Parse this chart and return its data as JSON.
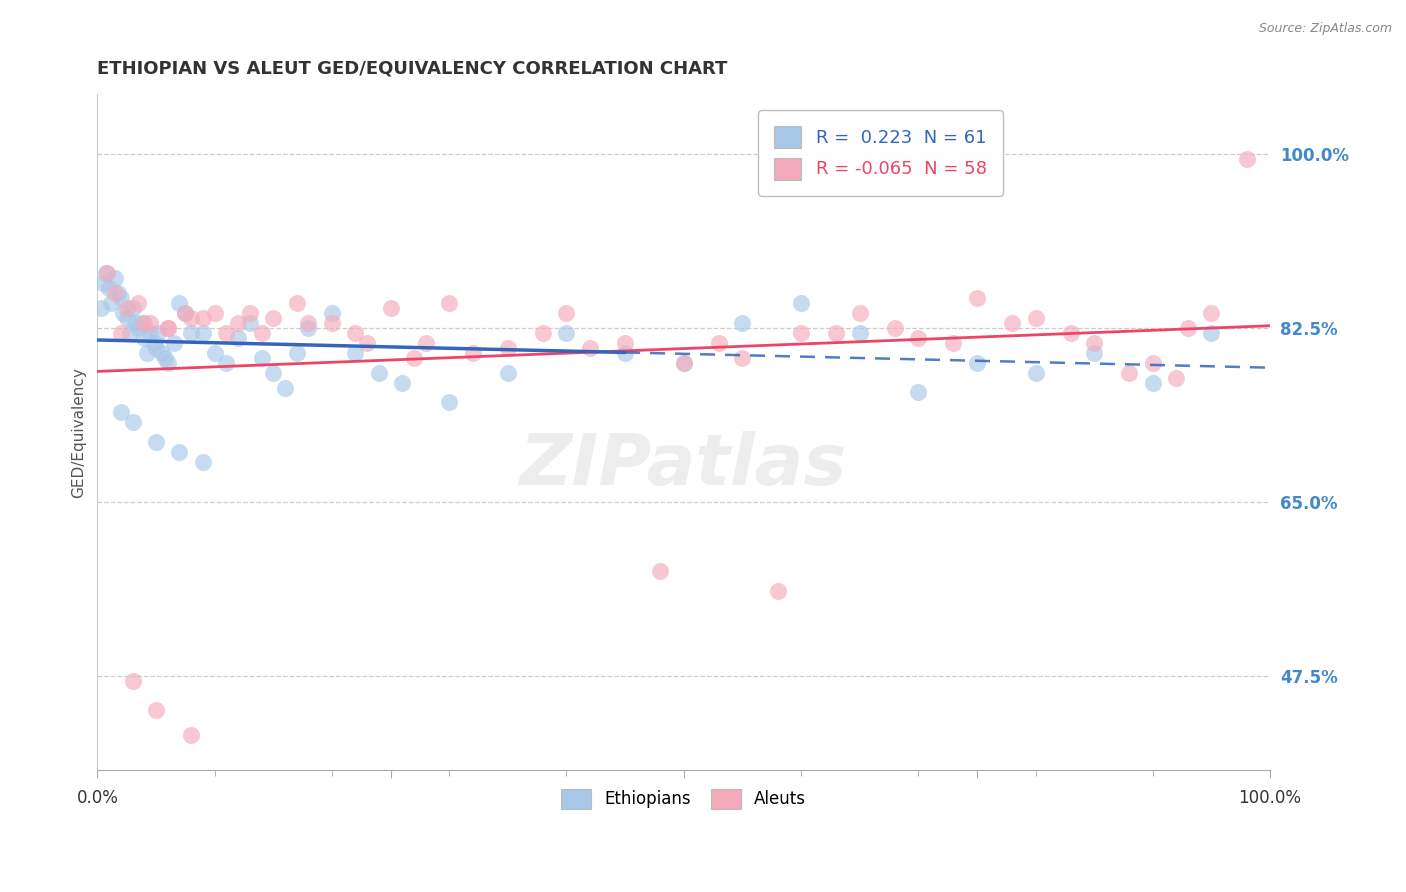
{
  "title": "ETHIOPIAN VS ALEUT GED/EQUIVALENCY CORRELATION CHART",
  "ylabel": "GED/Equivalency",
  "source": "Source: ZipAtlas.com",
  "r_ethiopian": 0.223,
  "n_ethiopian": 61,
  "r_aleut": -0.065,
  "n_aleut": 58,
  "y_ticks": [
    47.5,
    65.0,
    82.5,
    100.0
  ],
  "x_ticks_vals": [
    0.0,
    25.0,
    50.0,
    75.0,
    100.0
  ],
  "x_tick_labels": [
    "0.0%",
    "",
    "",
    "",
    "100.0%"
  ],
  "color_ethiopian": "#A8C8E8",
  "color_aleut": "#F4AABB",
  "color_line_ethiopian": "#3366BB",
  "color_line_aleut": "#EE4466",
  "color_yticklabel": "#4488CC",
  "xlim": [
    0,
    100
  ],
  "ylim": [
    38,
    106
  ],
  "eth_x": [
    0.3,
    0.5,
    0.7,
    1.0,
    1.2,
    1.5,
    1.8,
    2.0,
    2.2,
    2.5,
    2.8,
    3.0,
    3.2,
    3.5,
    3.8,
    4.0,
    4.2,
    4.5,
    4.8,
    5.0,
    5.2,
    5.5,
    5.8,
    6.0,
    6.5,
    7.0,
    7.5,
    8.0,
    9.0,
    10.0,
    11.0,
    12.0,
    13.0,
    14.0,
    15.0,
    16.0,
    17.0,
    18.0,
    20.0,
    22.0,
    24.0,
    26.0,
    30.0,
    35.0,
    40.0,
    45.0,
    50.0,
    55.0,
    60.0,
    65.0,
    70.0,
    75.0,
    80.0,
    85.0,
    90.0,
    95.0,
    2.0,
    3.0,
    5.0,
    7.0,
    9.0
  ],
  "eth_y": [
    84.5,
    87.0,
    88.0,
    86.5,
    85.0,
    87.5,
    86.0,
    85.5,
    84.0,
    83.5,
    82.0,
    84.5,
    83.0,
    82.5,
    83.0,
    81.5,
    80.0,
    82.0,
    81.0,
    80.5,
    82.0,
    80.0,
    79.5,
    79.0,
    81.0,
    85.0,
    84.0,
    82.0,
    82.0,
    80.0,
    79.0,
    81.5,
    83.0,
    79.5,
    78.0,
    76.5,
    80.0,
    82.5,
    84.0,
    80.0,
    78.0,
    77.0,
    75.0,
    78.0,
    82.0,
    80.0,
    79.0,
    83.0,
    85.0,
    82.0,
    76.0,
    79.0,
    78.0,
    80.0,
    77.0,
    82.0,
    74.0,
    73.0,
    71.0,
    70.0,
    69.0
  ],
  "aleut_x": [
    0.8,
    1.5,
    2.5,
    3.5,
    4.5,
    6.0,
    7.5,
    9.0,
    11.0,
    13.0,
    15.0,
    17.0,
    20.0,
    22.0,
    25.0,
    28.0,
    30.0,
    35.0,
    40.0,
    45.0,
    50.0,
    55.0,
    60.0,
    65.0,
    70.0,
    75.0,
    80.0,
    85.0,
    90.0,
    92.0,
    95.0,
    98.0,
    2.0,
    4.0,
    6.0,
    8.0,
    10.0,
    12.0,
    14.0,
    18.0,
    23.0,
    27.0,
    32.0,
    38.0,
    42.0,
    48.0,
    53.0,
    58.0,
    63.0,
    68.0,
    73.0,
    78.0,
    83.0,
    88.0,
    93.0,
    3.0,
    5.0,
    8.0
  ],
  "aleut_y": [
    88.0,
    86.0,
    84.5,
    85.0,
    83.0,
    82.5,
    84.0,
    83.5,
    82.0,
    84.0,
    83.5,
    85.0,
    83.0,
    82.0,
    84.5,
    81.0,
    85.0,
    80.5,
    84.0,
    81.0,
    79.0,
    79.5,
    82.0,
    84.0,
    81.5,
    85.5,
    83.5,
    81.0,
    79.0,
    77.5,
    84.0,
    99.5,
    82.0,
    83.0,
    82.5,
    83.5,
    84.0,
    83.0,
    82.0,
    83.0,
    81.0,
    79.5,
    80.0,
    82.0,
    80.5,
    58.0,
    81.0,
    56.0,
    82.0,
    82.5,
    81.0,
    83.0,
    82.0,
    78.0,
    82.5,
    47.0,
    44.0,
    41.5
  ]
}
